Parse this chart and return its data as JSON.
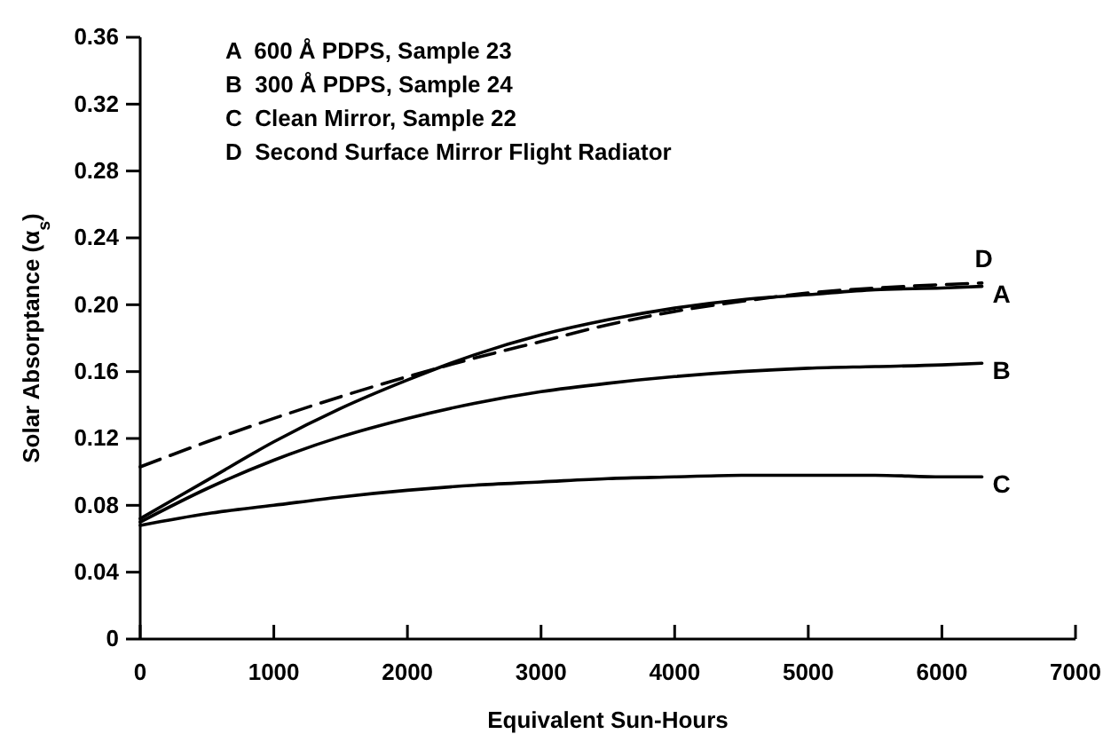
{
  "chart_data": {
    "type": "line",
    "xlabel": "Equivalent Sun-Hours",
    "ylabel": "Solar Absorptance (α$_{s}$)",
    "xlim": [
      0,
      7000
    ],
    "xticks": [
      0,
      1000,
      2000,
      3000,
      4000,
      5000,
      6000,
      7000
    ],
    "ylim": [
      0,
      0.36
    ],
    "yticks": [
      0,
      {
        "value": 0.04,
        "label": "0.04"
      },
      {
        "value": 0.08,
        "label": "0.08"
      },
      {
        "value": 0.12,
        "label": "0.12"
      },
      {
        "value": 0.16,
        "label": "0.16"
      },
      {
        "value": 0.2,
        "label": "0.20"
      },
      {
        "value": 0.24,
        "label": "0.24"
      },
      {
        "value": 0.28,
        "label": "0.28"
      },
      {
        "value": 0.32,
        "label": "0.32"
      },
      {
        "value": 0.36,
        "label": "0.36"
      }
    ],
    "x": [
      0,
      500,
      1000,
      1500,
      2000,
      2500,
      3000,
      3500,
      4000,
      4500,
      5000,
      5500,
      6000,
      6300
    ],
    "grid": false,
    "legend": false,
    "marker": "none",
    "series": [
      {
        "name": "A",
        "color": "#000000",
        "line_style": "solid",
        "values": [
          0.072,
          0.095,
          0.118,
          0.138,
          0.155,
          0.17,
          0.182,
          0.191,
          0.198,
          0.203,
          0.206,
          0.209,
          0.21,
          0.211
        ]
      },
      {
        "name": "B",
        "color": "#000000",
        "line_style": "solid",
        "values": [
          0.07,
          0.09,
          0.107,
          0.121,
          0.132,
          0.141,
          0.148,
          0.153,
          0.157,
          0.16,
          0.162,
          0.163,
          0.164,
          0.165
        ]
      },
      {
        "name": "C",
        "color": "#000000",
        "line_style": "solid",
        "values": [
          0.068,
          0.075,
          0.08,
          0.085,
          0.089,
          0.092,
          0.094,
          0.096,
          0.097,
          0.098,
          0.098,
          0.098,
          0.097,
          0.097
        ]
      },
      {
        "name": "D",
        "color": "#000000",
        "line_style": "dashed",
        "values": [
          0.103,
          0.118,
          0.132,
          0.145,
          0.157,
          0.168,
          0.178,
          0.188,
          0.196,
          0.202,
          0.207,
          0.21,
          0.212,
          0.213
        ]
      }
    ],
    "annotations": [
      "A  600 Å PDPS, Sample 23",
      "B  300 Å PDPS, Sample 24",
      "C  Clean Mirror, Sample 22",
      "D  Second Surface Mirror Flight Radiator"
    ]
  }
}
